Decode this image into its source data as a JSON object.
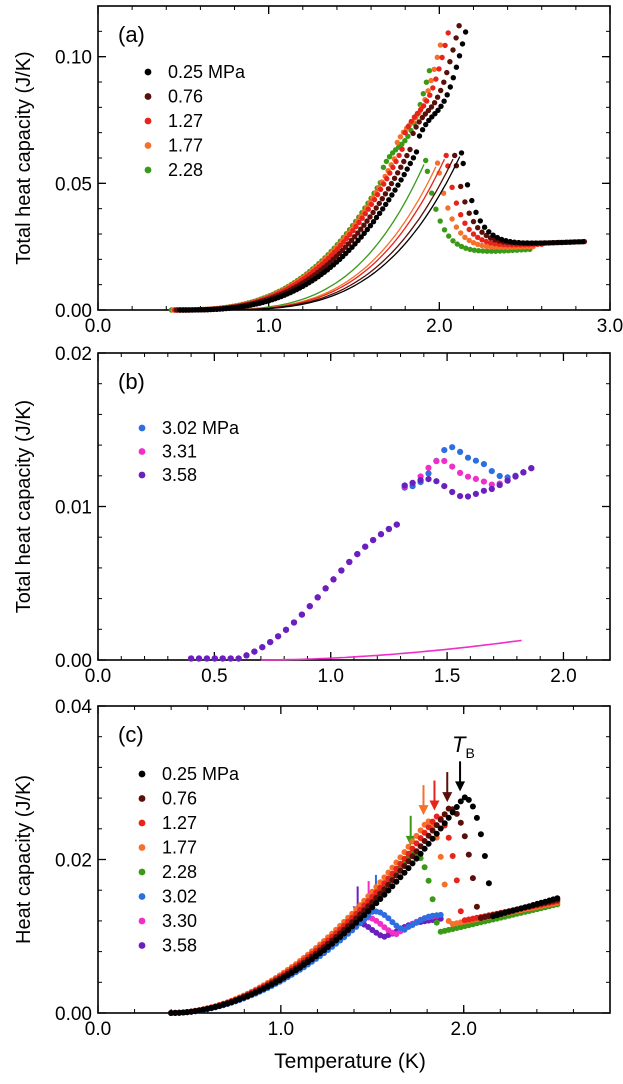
{
  "figure": {
    "x_label": "Temperature (K)",
    "tb_label": "T",
    "tb_sub": "B"
  },
  "chart_data": [
    {
      "id": "a",
      "type": "scatter",
      "panel_label": "(a)",
      "ylabel": "Total heat capacity (J/K)",
      "xlabel": "",
      "xlim": [
        0.0,
        3.0
      ],
      "ylim": [
        0.0,
        0.12
      ],
      "x_ticks": [
        0.0,
        1.0,
        2.0,
        3.0
      ],
      "x_tick_labels": [
        "0.0",
        "1.0",
        "2.0",
        "3.0"
      ],
      "y_ticks": [
        0.0,
        0.05,
        0.1
      ],
      "y_tick_labels": [
        "0.00",
        "0.05",
        "0.10"
      ],
      "legend_position": "top-left",
      "series": [
        {
          "name": "0.25 MPa",
          "color": "#000000",
          "peak_x": 2.13,
          "low_peak": 0.062,
          "high_peak": 0.109,
          "tail_end_x": 2.85,
          "tail_end_y": 0.027,
          "base_y": 0.025,
          "onset_x": 0.48,
          "max_x": 2.16
        },
        {
          "name": "0.76",
          "color": "#5a0f0a",
          "peak_x": 2.09,
          "low_peak": 0.061,
          "high_peak": 0.111,
          "tail_end_x": 2.85,
          "tail_end_y": 0.027,
          "base_y": 0.025,
          "onset_x": 0.46,
          "max_x": 2.12
        },
        {
          "name": "1.27",
          "color": "#e8231b",
          "peak_x": 2.04,
          "low_peak": 0.061,
          "high_peak": 0.11,
          "tail_end_x": 2.62,
          "tail_end_y": 0.026,
          "base_y": 0.024,
          "onset_x": 0.45,
          "max_x": 2.06
        },
        {
          "name": "1.77",
          "color": "#f5702a",
          "peak_x": 1.99,
          "low_peak": 0.058,
          "high_peak": 0.106,
          "tail_end_x": 2.55,
          "tail_end_y": 0.025,
          "base_y": 0.023,
          "onset_x": 0.44,
          "max_x": 2.02
        },
        {
          "name": "2.28",
          "color": "#3a9a17",
          "peak_x": 1.92,
          "low_peak": 0.059,
          "high_peak": 0.096,
          "tail_end_x": 2.55,
          "tail_end_y": 0.024,
          "base_y": 0.021,
          "onset_x": 0.43,
          "max_x": 1.96
        }
      ]
    },
    {
      "id": "b",
      "type": "scatter",
      "panel_label": "(b)",
      "ylabel": "Total heat capacity (J/K)",
      "xlabel": "",
      "xlim": [
        0.0,
        2.2
      ],
      "ylim": [
        0.0,
        0.02
      ],
      "x_ticks": [
        0.0,
        0.5,
        1.0,
        1.5,
        2.0
      ],
      "x_tick_labels": [
        "0.0",
        "0.5",
        "1.0",
        "1.5",
        "2.0"
      ],
      "y_ticks": [
        0.0,
        0.01,
        0.02
      ],
      "y_tick_labels": [
        "0.00",
        "0.01",
        "0.02"
      ],
      "legend_position": "upper-left",
      "series": [
        {
          "name": "3.02 MPa",
          "color": "#2d6fe0",
          "peak_x": 1.51,
          "peak_y": 0.0141,
          "dip_x": 1.65,
          "dip_y": 0.0129
        },
        {
          "name": "3.31",
          "color": "#f02fc8",
          "peak_x": 1.47,
          "peak_y": 0.0133,
          "dip_x": 1.62,
          "dip_y": 0.012
        },
        {
          "name": "3.58",
          "color": "#6a1fbf",
          "peak_x": 1.42,
          "peak_y": 0.0121,
          "dip_x": 1.57,
          "dip_y": 0.0109
        }
      ],
      "addenda_line": {
        "color": "#f02fc8",
        "x_start": 0.7,
        "x_end": 1.83,
        "y_end": 0.0013
      }
    },
    {
      "id": "c",
      "type": "scatter",
      "panel_label": "(c)",
      "ylabel": "Heat capacity (J/K)",
      "xlabel": "Temperature (K)",
      "xlim": [
        0.0,
        2.8
      ],
      "ylim": [
        0.0,
        0.04
      ],
      "x_ticks": [
        0.0,
        1.0,
        2.0
      ],
      "x_tick_labels": [
        "0.0",
        "1.0",
        "2.0"
      ],
      "y_ticks": [
        0.0,
        0.02,
        0.04
      ],
      "y_tick_labels": [
        "0.00",
        "0.02",
        "0.04"
      ],
      "legend_position": "left",
      "series": [
        {
          "name": "0.25 MPa",
          "color": "#000000",
          "tb": 1.98,
          "peak_x": 2.0,
          "peak_y": 0.0281,
          "drop_x": 2.16,
          "min_y": 0.0126,
          "end_x": 2.52,
          "end_y": 0.015
        },
        {
          "name": "0.76",
          "color": "#5a0f0a",
          "tb": 1.91,
          "peak_x": 1.92,
          "peak_y": 0.0267,
          "drop_x": 2.08,
          "min_y": 0.0123,
          "end_x": 2.52,
          "end_y": 0.0148
        },
        {
          "name": "1.27",
          "color": "#e8231b",
          "tb": 1.84,
          "peak_x": 1.85,
          "peak_y": 0.0256,
          "drop_x": 1.99,
          "min_y": 0.012,
          "end_x": 2.52,
          "end_y": 0.0146
        },
        {
          "name": "1.77",
          "color": "#f5702a",
          "tb": 1.78,
          "peak_x": 1.8,
          "peak_y": 0.025,
          "drop_x": 1.92,
          "min_y": 0.0115,
          "end_x": 2.52,
          "end_y": 0.0144
        },
        {
          "name": "2.28",
          "color": "#3a9a17",
          "tb": 1.71,
          "peak_x": 1.72,
          "peak_y": 0.021,
          "drop_x": 1.86,
          "min_y": 0.0105,
          "end_x": 2.52,
          "end_y": 0.0142
        },
        {
          "name": "3.02",
          "color": "#2d6fe0",
          "tb": 1.52,
          "peak_x": 1.53,
          "peak_y": 0.0133,
          "dip_x": 1.68,
          "dip_y": 0.011,
          "end_x": 1.88,
          "end_y": 0.0111
        },
        {
          "name": "3.30",
          "color": "#f02fc8",
          "tb": 1.48,
          "peak_x": 1.48,
          "peak_y": 0.0125,
          "dip_x": 1.64,
          "dip_y": 0.0104,
          "end_x": 1.86,
          "end_y": 0.0112
        },
        {
          "name": "3.58",
          "color": "#6a1fbf",
          "tb": 1.42,
          "peak_x": 1.43,
          "peak_y": 0.0118,
          "dip_x": 1.58,
          "dip_y": 0.01,
          "end_x": 1.88,
          "end_y": 0.0111
        }
      ]
    }
  ]
}
